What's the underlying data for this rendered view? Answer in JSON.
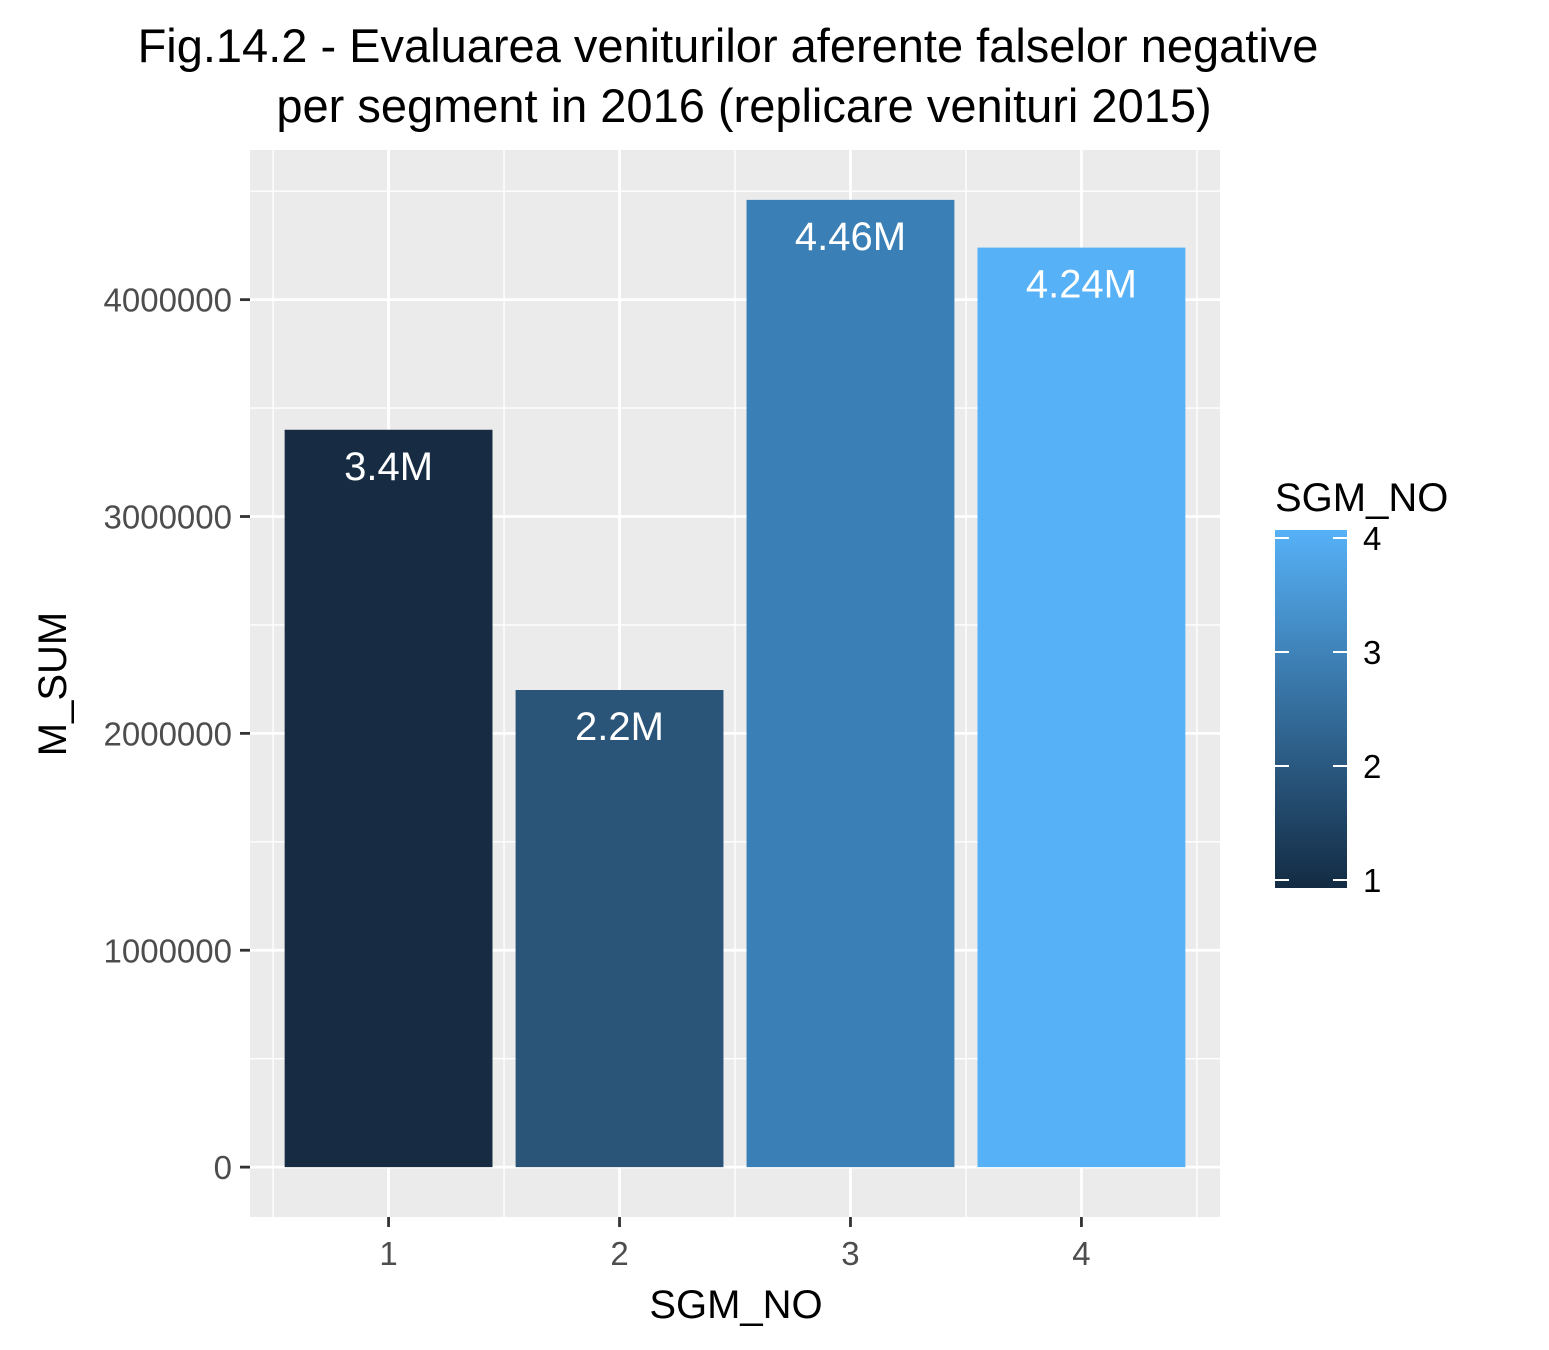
{
  "chart_data": {
    "type": "bar",
    "title": [
      "Fig.14.2 - Evaluarea veniturilor aferente falselor negative",
      "per segment in 2016 (replicare venituri 2015)"
    ],
    "xlabel": "SGM_NO",
    "ylabel": "M_SUM",
    "categories": [
      "1",
      "2",
      "3",
      "4"
    ],
    "values": [
      3400000,
      2200000,
      4460000,
      4240000
    ],
    "bar_labels": [
      "3.4M",
      "2.2M",
      "4.46M",
      "4.24M"
    ],
    "bar_colors": [
      "#172c43",
      "#2a5579",
      "#3a80b6",
      "#56b1f7"
    ],
    "y_ticks": [
      0,
      1000000,
      2000000,
      3000000,
      4000000
    ],
    "y_tick_labels": [
      "0",
      "1000000",
      "2000000",
      "3000000",
      "4000000"
    ],
    "ylim": [
      -230000,
      4690000
    ],
    "grid": true,
    "legend": {
      "title": "SGM_NO",
      "position": "right",
      "ticks": [
        "1",
        "2",
        "3",
        "4"
      ],
      "tick_values": [
        1,
        2,
        3,
        4
      ],
      "range": [
        1,
        4
      ],
      "color_low": "#132b43",
      "color_high": "#56b1f7"
    },
    "panel_background": "#ebebeb",
    "grid_color": "#ffffff"
  }
}
